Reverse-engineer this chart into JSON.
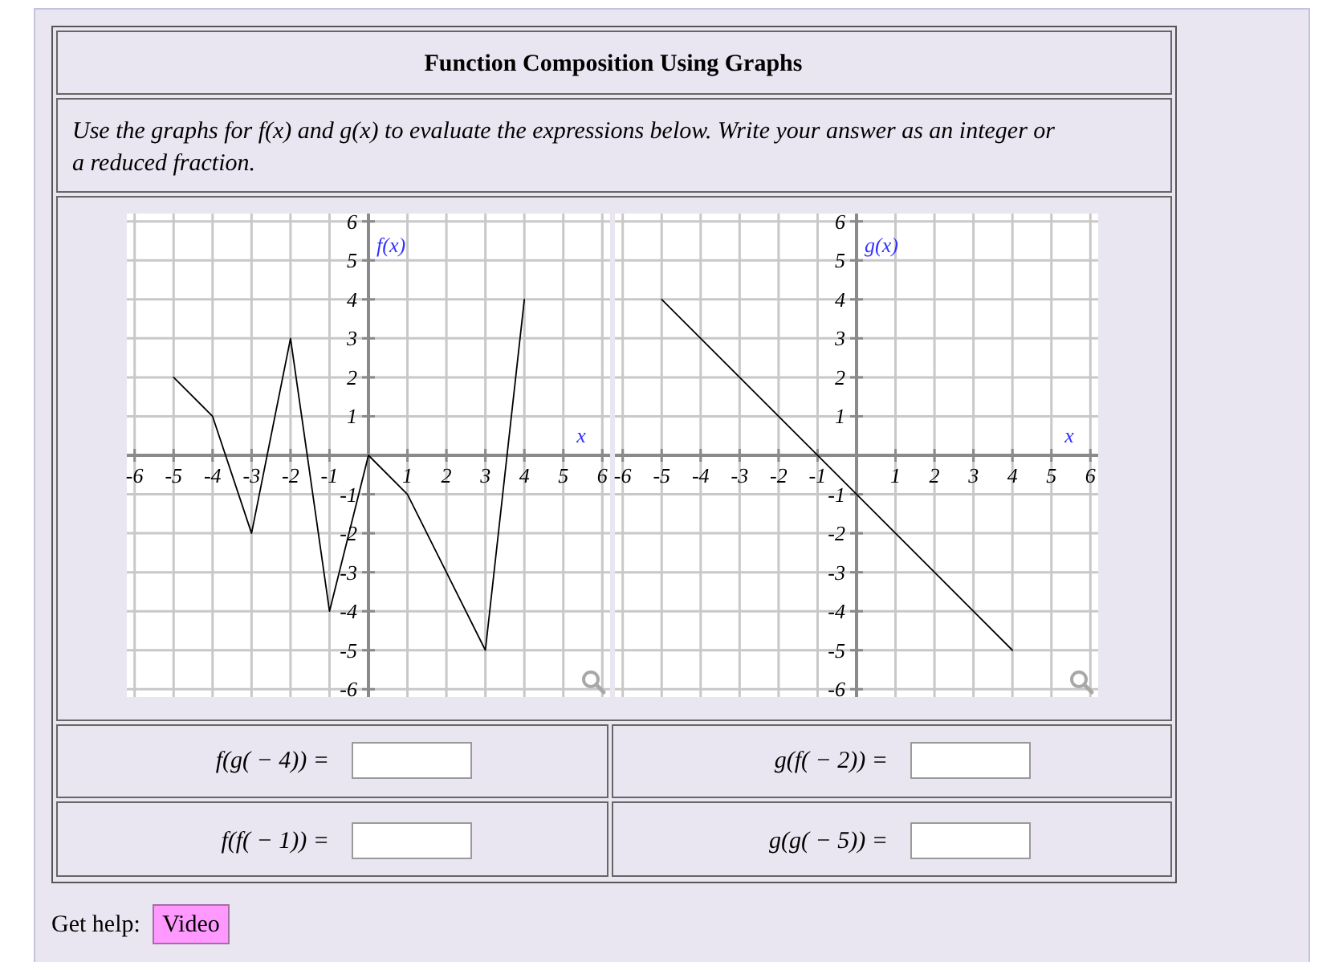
{
  "chart_data": [
    {
      "type": "other",
      "title": "Function Composition Using Graphs",
      "subtitle": "Use the graphs for f(x) and g(x) to evaluate the expressions below. Write your answer as an integer or a reduced fraction."
    },
    {
      "type": "line",
      "xlabel": "x",
      "ylabel": "f(x)",
      "x": [
        -5,
        -4,
        -3,
        -2,
        -1,
        0,
        1,
        3,
        4
      ],
      "values": [
        2,
        1,
        -2,
        3,
        -4,
        0,
        -1,
        -5,
        4
      ],
      "color": "#000000",
      "xlim": [
        -6.2,
        6.2
      ],
      "ylim": [
        -6.2,
        6.2
      ],
      "xticks": [
        -6,
        -5,
        -4,
        -3,
        -2,
        -1,
        1,
        2,
        3,
        4,
        5,
        6
      ],
      "yticks": [
        -6,
        -5,
        -4,
        -3,
        -2,
        -1,
        1,
        2,
        3,
        4,
        5,
        6
      ],
      "grid": true
    },
    {
      "type": "line",
      "xlabel": "x",
      "ylabel": "g(x)",
      "x": [
        -5,
        4
      ],
      "values": [
        4,
        -5
      ],
      "color": "#000000",
      "xlim": [
        -6.2,
        6.2
      ],
      "ylim": [
        -6.2,
        6.2
      ],
      "xticks": [
        -6,
        -5,
        -4,
        -3,
        -2,
        -1,
        1,
        2,
        3,
        4,
        5,
        6
      ],
      "yticks": [
        -6,
        -5,
        -4,
        -3,
        -2,
        -1,
        1,
        2,
        3,
        4,
        5,
        6
      ],
      "grid": true
    },
    {
      "type": "other",
      "annotations": [
        "f(g( − 4)) =",
        "g(f( − 2)) =",
        "f(f( − 1)) =",
        "g(g( − 5)) =",
        "Get help:",
        "Video"
      ]
    }
  ]
}
